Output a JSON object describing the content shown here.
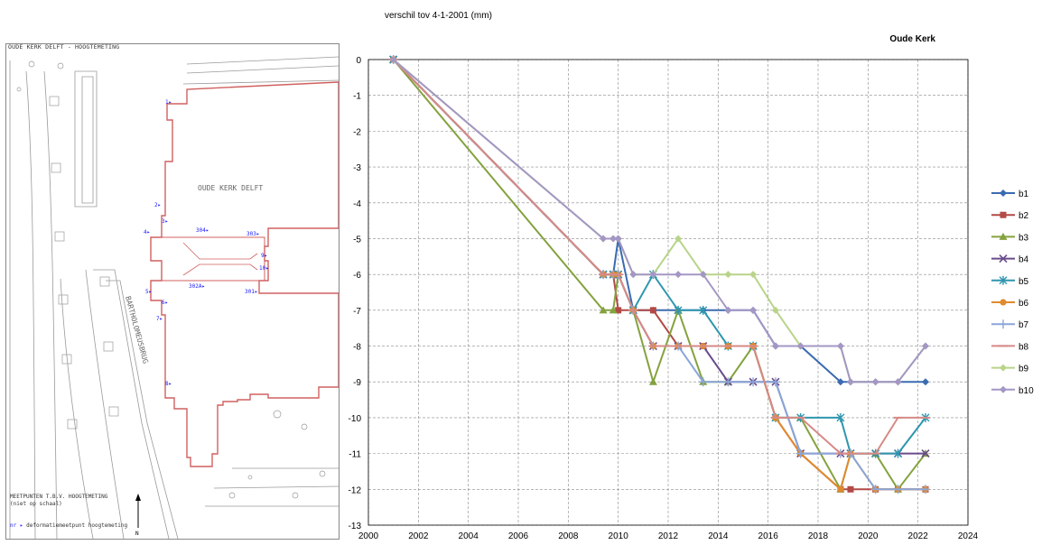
{
  "header": {
    "subtitle": "verschil tov 4-1-2001 (mm)"
  },
  "map": {
    "title": "OUDE KERK DELFT - HOOGTEMETING",
    "building_label": "OUDE KERK DELFT",
    "street_label": "BARTHOLOMEUSBRUG",
    "legend_title": "MEETPUNTEN T.B.V. HOOGTEMETING",
    "legend_sub": "(niet op schaal)",
    "legend_marker_code": "nr",
    "legend_marker_text": "deformatiemeetpunt hoogtemeting",
    "north": "N",
    "points": [
      "1",
      "2",
      "3",
      "304",
      "303",
      "4",
      "9",
      "10",
      "5",
      "302A",
      "301",
      "6",
      "7",
      "8"
    ],
    "colors": {
      "outline": "#d06060",
      "points": "#1a1aff",
      "lines": "#9a9a9a"
    }
  },
  "chart_data": {
    "type": "line",
    "title": "Oude Kerk",
    "xlabel": "",
    "ylabel": "",
    "xlim": [
      2000,
      2024
    ],
    "ylim": [
      -13,
      0
    ],
    "xticks": [
      2000,
      2002,
      2004,
      2006,
      2008,
      2010,
      2012,
      2014,
      2016,
      2018,
      2020,
      2022,
      2024
    ],
    "yticks": [
      0,
      -1,
      -2,
      -3,
      -4,
      -5,
      -6,
      -7,
      -8,
      -9,
      -10,
      -11,
      -12,
      -13
    ],
    "grid": true,
    "legend_position": "right",
    "x": [
      2001.0,
      2009.4,
      2009.8,
      2010.0,
      2010.6,
      2011.4,
      2012.4,
      2013.4,
      2014.4,
      2015.4,
      2016.3,
      2017.3,
      2018.9,
      2019.3,
      2020.3,
      2021.2,
      2022.3
    ],
    "series": [
      {
        "name": "b1",
        "color": "#3a6bb0",
        "marker": "diamond",
        "values": [
          0,
          -6,
          -6,
          -5,
          -7,
          -7,
          -7,
          -7,
          -7,
          -7,
          -8,
          -8,
          -9,
          -9,
          -9,
          -9,
          -9
        ]
      },
      {
        "name": "b2",
        "color": "#b24a46",
        "marker": "square",
        "values": [
          0,
          -6,
          -6,
          -7,
          -7,
          -7,
          -8,
          -8,
          -8,
          -8,
          -10,
          -11,
          -12,
          -12,
          -12,
          -12,
          -12
        ]
      },
      {
        "name": "b3",
        "color": "#84a23e",
        "marker": "triangle",
        "values": [
          0,
          -7,
          -7,
          -6,
          -7,
          -9,
          -7,
          -9,
          -9,
          -8,
          -10,
          -10,
          -12,
          -11,
          -11,
          -12,
          -11
        ]
      },
      {
        "name": "b4",
        "color": "#6a4c8c",
        "marker": "x",
        "values": [
          0,
          -6,
          -6,
          -6,
          -7,
          -8,
          -8,
          -8,
          -9,
          -9,
          -9,
          -11,
          -11,
          -11,
          -11,
          -11,
          -11
        ]
      },
      {
        "name": "b5",
        "color": "#2f96ae",
        "marker": "star",
        "values": [
          0,
          -6,
          -6,
          -6,
          -7,
          -6,
          -7,
          -7,
          -8,
          -8,
          -10,
          -10,
          -10,
          -11,
          -11,
          -11,
          -10
        ]
      },
      {
        "name": "b6",
        "color": "#e08a2e",
        "marker": "circle",
        "values": [
          0,
          -6,
          -6,
          -6,
          -7,
          -8,
          -8,
          -8,
          -8,
          -8,
          -10,
          -11,
          -12,
          -11,
          -12,
          -12,
          -12
        ]
      },
      {
        "name": "b7",
        "color": "#8aa6d8",
        "marker": "plus",
        "values": [
          0,
          -6,
          -6,
          -6,
          -7,
          -8,
          -8,
          -9,
          -9,
          -9,
          -9,
          -11,
          -11,
          -11,
          -12,
          -12,
          -12
        ]
      },
      {
        "name": "b8",
        "color": "#d68a86",
        "marker": "dash",
        "values": [
          0,
          -6,
          -6,
          -6,
          -7,
          -8,
          -8,
          -8,
          -8,
          -8,
          -10,
          -10,
          -11,
          -11,
          -11,
          -10,
          -10
        ]
      },
      {
        "name": "b9",
        "color": "#b9d48a",
        "marker": "diamond",
        "values": [
          0,
          -5,
          -5,
          -5,
          -6,
          -6,
          -5,
          -6,
          -6,
          -6,
          -7,
          -8,
          -8,
          -9,
          -9,
          -9,
          -8
        ]
      },
      {
        "name": "b10",
        "color": "#a497c5",
        "marker": "diamond",
        "values": [
          0,
          -5,
          -5,
          -5,
          -6,
          -6,
          -6,
          -6,
          -7,
          -7,
          -8,
          -8,
          -8,
          -9,
          -9,
          -9,
          -8
        ]
      }
    ]
  }
}
